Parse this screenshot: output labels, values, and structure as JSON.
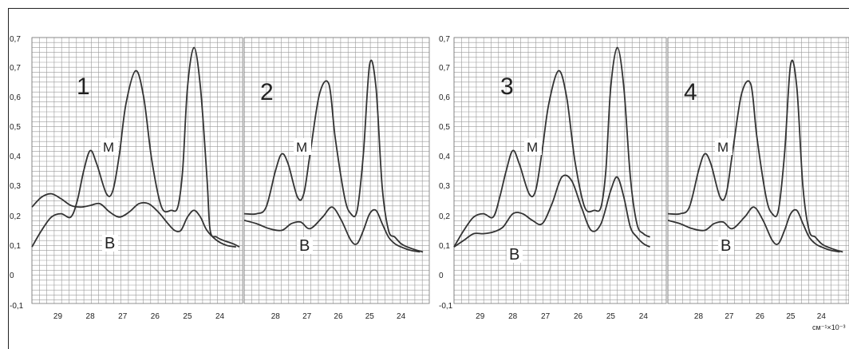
{
  "chart_data": [
    {
      "type": "line",
      "group": "left",
      "ylim": [
        -0.1,
        0.7
      ],
      "yticks": [
        "-0,1",
        "0",
        "0,1",
        "0,2",
        "0,3",
        "0,4",
        "0,5",
        "0,6",
        "0,7",
        "0,7"
      ],
      "xlabel": "",
      "panels": [
        {
          "number": "1",
          "xticks": [
            "29",
            "28",
            "27",
            "26",
            "25",
            "24"
          ],
          "xlim": [
            29.8,
            23.3
          ],
          "series": [
            {
              "name": "M",
              "x": [
                29.8,
                29.5,
                29.2,
                28.9,
                28.6,
                28.4,
                28.2,
                28.0,
                27.8,
                27.5,
                27.3,
                27.1,
                26.9,
                26.6,
                26.35,
                26.1,
                25.8,
                25.5,
                25.3,
                25.15,
                25.0,
                24.8,
                24.6,
                24.4,
                24.3,
                24.1,
                23.9,
                23.6,
                23.4
              ],
              "y": [
                0.07,
                0.12,
                0.16,
                0.17,
                0.16,
                0.21,
                0.3,
                0.36,
                0.32,
                0.23,
                0.24,
                0.35,
                0.5,
                0.6,
                0.52,
                0.33,
                0.19,
                0.18,
                0.19,
                0.3,
                0.55,
                0.67,
                0.55,
                0.28,
                0.12,
                0.1,
                0.09,
                0.08,
                0.07
              ]
            },
            {
              "name": "B",
              "x": [
                29.8,
                29.5,
                29.2,
                28.9,
                28.6,
                28.3,
                28.0,
                27.7,
                27.4,
                27.1,
                26.8,
                26.5,
                26.2,
                25.9,
                25.6,
                25.4,
                25.2,
                25.0,
                24.8,
                24.6,
                24.4,
                24.1,
                23.8,
                23.5
              ],
              "y": [
                0.19,
                0.22,
                0.23,
                0.215,
                0.195,
                0.19,
                0.195,
                0.2,
                0.175,
                0.16,
                0.175,
                0.2,
                0.2,
                0.175,
                0.14,
                0.12,
                0.12,
                0.16,
                0.18,
                0.16,
                0.12,
                0.09,
                0.075,
                0.07
              ]
            }
          ]
        },
        {
          "number": "2",
          "xticks": [
            "28",
            "27",
            "26",
            "25",
            "24"
          ],
          "xlim": [
            29.0,
            23.1
          ],
          "series": [
            {
              "name": "M",
              "x": [
                29.0,
                28.6,
                28.3,
                28.0,
                27.8,
                27.6,
                27.3,
                27.1,
                26.9,
                26.6,
                26.3,
                26.1,
                25.8,
                25.6,
                25.4,
                25.2,
                25.0,
                24.8,
                24.6,
                24.4,
                24.2,
                24.0,
                23.8,
                23.5,
                23.3
              ],
              "y": [
                0.17,
                0.17,
                0.19,
                0.3,
                0.35,
                0.32,
                0.22,
                0.23,
                0.35,
                0.53,
                0.56,
                0.4,
                0.22,
                0.17,
                0.18,
                0.35,
                0.62,
                0.55,
                0.25,
                0.12,
                0.1,
                0.08,
                0.07,
                0.06,
                0.055
              ]
            },
            {
              "name": "B",
              "x": [
                29.0,
                28.6,
                28.2,
                27.8,
                27.5,
                27.2,
                26.9,
                26.5,
                26.2,
                25.9,
                25.6,
                25.4,
                25.2,
                25.0,
                24.8,
                24.6,
                24.4,
                24.2,
                24.0,
                23.7,
                23.4
              ],
              "y": [
                0.15,
                0.14,
                0.125,
                0.12,
                0.14,
                0.145,
                0.125,
                0.16,
                0.19,
                0.15,
                0.09,
                0.08,
                0.12,
                0.17,
                0.18,
                0.14,
                0.1,
                0.08,
                0.07,
                0.06,
                0.055
              ]
            }
          ]
        }
      ]
    },
    {
      "type": "line",
      "group": "right",
      "ylim": [
        -0.1,
        0.7
      ],
      "yticks": [
        "-0,1",
        "0",
        "0,1",
        "0,2",
        "0,3",
        "0,4",
        "0,5",
        "0,6",
        "0,7",
        "0,7"
      ],
      "xlabel": "см⁻¹×10⁻³",
      "panels": [
        {
          "number": "3",
          "xticks": [
            "29",
            "28",
            "27",
            "26",
            "25",
            "24"
          ],
          "xlim": [
            29.8,
            23.3
          ],
          "series": [
            {
              "name": "M",
              "x": [
                29.8,
                29.5,
                29.2,
                28.9,
                28.6,
                28.4,
                28.2,
                28.0,
                27.8,
                27.5,
                27.3,
                27.1,
                26.9,
                26.6,
                26.35,
                26.1,
                25.8,
                25.5,
                25.3,
                25.15,
                25.0,
                24.8,
                24.6,
                24.4,
                24.2,
                24.0,
                23.8
              ],
              "y": [
                0.07,
                0.12,
                0.16,
                0.17,
                0.16,
                0.22,
                0.3,
                0.36,
                0.32,
                0.23,
                0.24,
                0.36,
                0.5,
                0.6,
                0.52,
                0.33,
                0.19,
                0.18,
                0.19,
                0.3,
                0.55,
                0.67,
                0.55,
                0.28,
                0.14,
                0.11,
                0.1
              ]
            },
            {
              "name": "B",
              "x": [
                29.8,
                29.5,
                29.2,
                28.9,
                28.6,
                28.3,
                28.0,
                27.7,
                27.4,
                27.1,
                26.8,
                26.5,
                26.2,
                25.9,
                25.6,
                25.3,
                25.0,
                24.8,
                24.6,
                24.4,
                24.2,
                24.0,
                23.8
              ],
              "y": [
                0.07,
                0.09,
                0.11,
                0.11,
                0.115,
                0.13,
                0.17,
                0.17,
                0.15,
                0.14,
                0.2,
                0.28,
                0.27,
                0.19,
                0.12,
                0.14,
                0.24,
                0.28,
                0.22,
                0.13,
                0.1,
                0.08,
                0.07
              ]
            }
          ]
        },
        {
          "number": "4",
          "xticks": [
            "28",
            "27",
            "26",
            "25",
            "24"
          ],
          "xlim": [
            29.0,
            23.1
          ],
          "series": [
            {
              "name": "M",
              "x": [
                29.0,
                28.6,
                28.3,
                28.0,
                27.8,
                27.6,
                27.3,
                27.1,
                26.9,
                26.6,
                26.3,
                26.1,
                25.8,
                25.6,
                25.4,
                25.2,
                25.0,
                24.8,
                24.6,
                24.4,
                24.2,
                24.0,
                23.8,
                23.5,
                23.3
              ],
              "y": [
                0.17,
                0.17,
                0.19,
                0.3,
                0.35,
                0.32,
                0.22,
                0.23,
                0.35,
                0.53,
                0.56,
                0.4,
                0.22,
                0.17,
                0.18,
                0.35,
                0.62,
                0.55,
                0.25,
                0.12,
                0.1,
                0.08,
                0.07,
                0.06,
                0.055
              ]
            },
            {
              "name": "B",
              "x": [
                29.0,
                28.6,
                28.2,
                27.8,
                27.5,
                27.2,
                26.9,
                26.5,
                26.2,
                25.9,
                25.6,
                25.4,
                25.2,
                25.0,
                24.8,
                24.6,
                24.4,
                24.2,
                24.0,
                23.7,
                23.4
              ],
              "y": [
                0.15,
                0.14,
                0.125,
                0.12,
                0.14,
                0.145,
                0.125,
                0.16,
                0.19,
                0.15,
                0.09,
                0.08,
                0.12,
                0.17,
                0.18,
                0.14,
                0.1,
                0.08,
                0.07,
                0.06,
                0.055
              ]
            }
          ]
        }
      ]
    }
  ],
  "colors": {
    "grid": "#9a9a9a",
    "curve": "#333333",
    "text": "#222222",
    "frame": "#222222"
  }
}
